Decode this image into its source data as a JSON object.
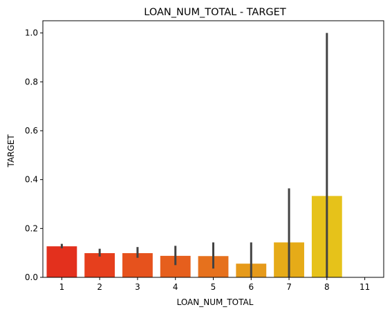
{
  "chart_data": {
    "type": "bar",
    "title": "LOAN_NUM_TOTAL - TARGET",
    "xlabel": "LOAN_NUM_TOTAL",
    "ylabel": "TARGET",
    "categories": [
      "1",
      "2",
      "3",
      "4",
      "5",
      "6",
      "7",
      "8",
      "11"
    ],
    "values": [
      0.127,
      0.099,
      0.099,
      0.088,
      0.087,
      0.056,
      0.143,
      0.333,
      0.0
    ],
    "error_low": [
      0.119,
      0.085,
      0.08,
      0.05,
      0.036,
      0.0,
      0.0,
      0.0,
      0.0
    ],
    "error_high": [
      0.137,
      0.117,
      0.124,
      0.129,
      0.143,
      0.143,
      0.364,
      1.0,
      0.0
    ],
    "colors": [
      "#e3301d",
      "#e63f1d",
      "#e6521d",
      "#e65f1d",
      "#e6711d",
      "#e69a1a",
      "#e6ab18",
      "#e6c21a",
      "#e6c21a"
    ],
    "error_color": "#424242",
    "ylim": [
      0,
      1.05
    ],
    "yticks": [
      0.0,
      0.2,
      0.4,
      0.6,
      0.8,
      1.0
    ],
    "ytick_labels": [
      "0.0",
      "0.2",
      "0.4",
      "0.6",
      "0.8",
      "1.0"
    ],
    "grid": false,
    "legend": "none"
  }
}
